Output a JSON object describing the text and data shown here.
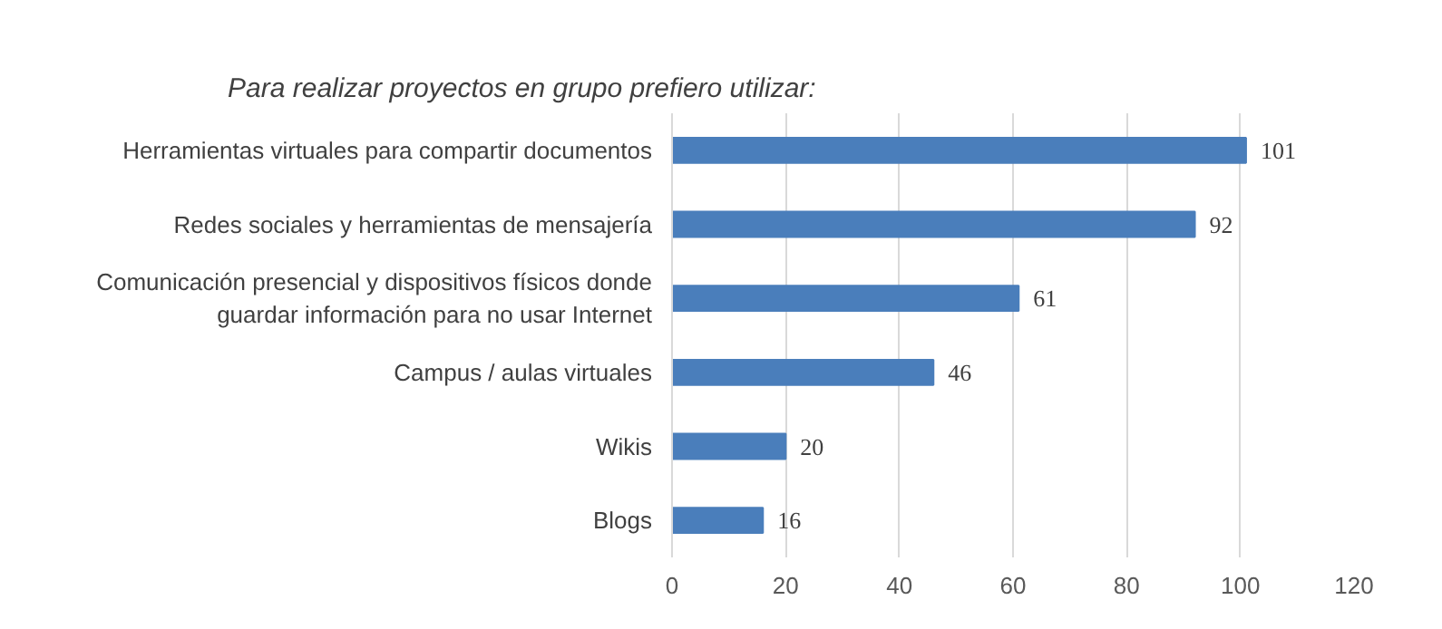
{
  "chart_data": {
    "type": "bar",
    "orientation": "horizontal",
    "title": "Para realizar proyectos en grupo prefiero utilizar:",
    "categories": [
      "Herramientas virtuales para compartir documentos",
      "Redes sociales y herramientas de mensajería",
      "Comunicación presencial y dispositivos físicos donde guardar información para no usar Internet",
      "Campus / aulas virtuales",
      "Wikis",
      "Blogs"
    ],
    "values": [
      101,
      92,
      61,
      46,
      20,
      16
    ],
    "color": "#4a7ebb",
    "xlim": [
      0,
      120
    ],
    "xticks": [
      0,
      20,
      40,
      60,
      80,
      100,
      120
    ],
    "grid": "x",
    "data_labels": true
  }
}
